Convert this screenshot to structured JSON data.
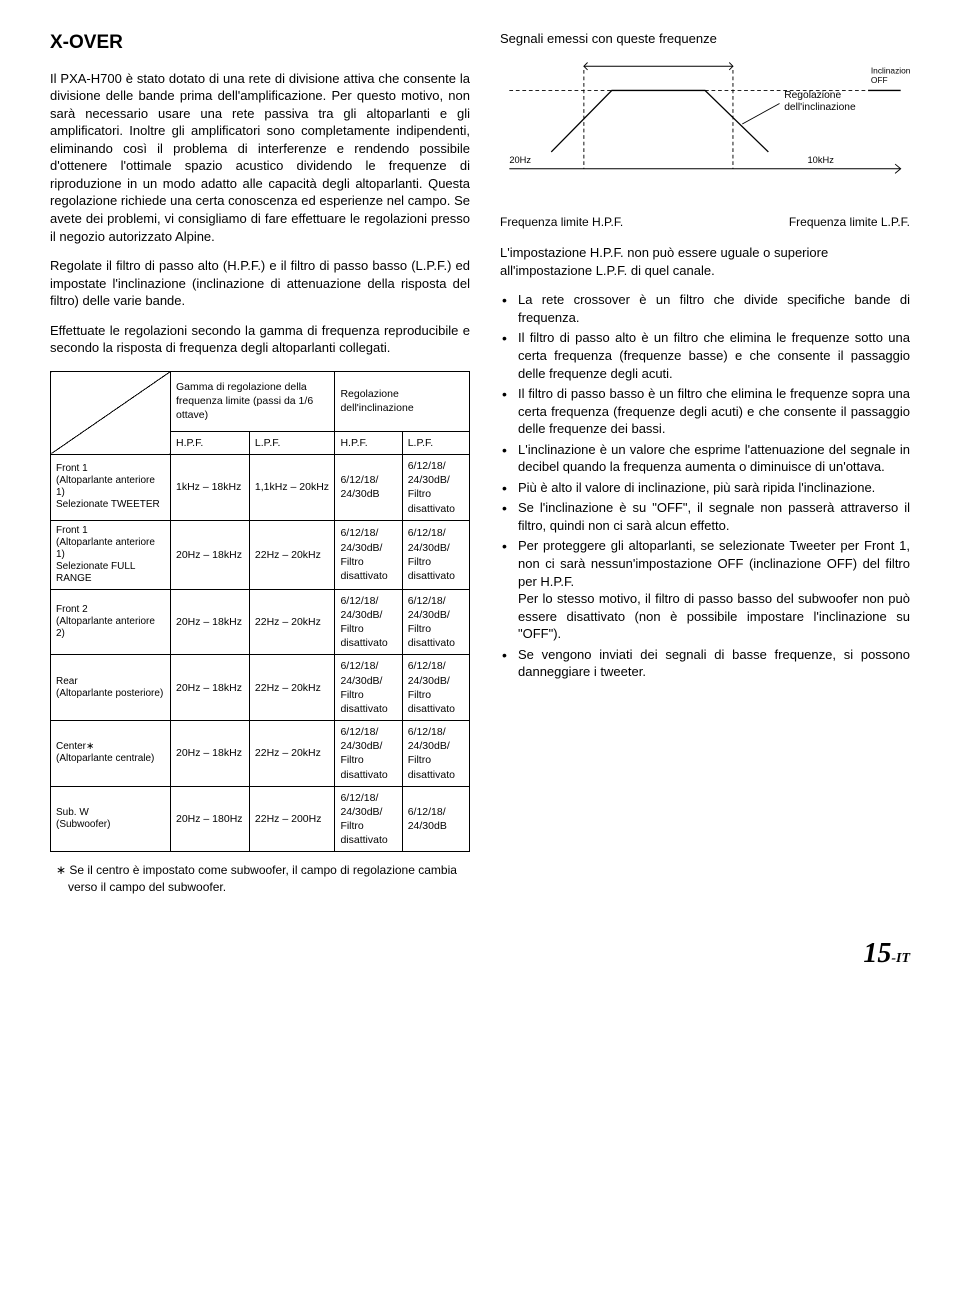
{
  "title": "X-OVER",
  "intro_p1": "Il PXA-H700 è stato dotato di una rete di divisione attiva che consente la divisione delle bande prima dell'amplificazione. Per questo motivo, non sarà necessario usare una rete passiva tra gli altoparlanti e gli amplificatori. Inoltre gli amplificatori sono completamente indipendenti, eliminando così il problema di interferenze e rendendo possibile d'ottenere l'ottimale spazio acustico dividendo le frequenze di riproduzione in un modo adatto alle capacità degli altoparlanti. Questa regolazione richiede una certa conoscenza ed esperienze nel campo. Se avete dei problemi, vi consigliamo di fare effettuare le regolazioni presso il negozio autorizzato Alpine.",
  "intro_p2": "Regolate il filtro di passo alto (H.P.F.) e il filtro di passo basso (L.P.F.) ed impostate l'inclinazione (inclinazione di attenuazione della risposta del filtro) delle varie bande.",
  "intro_p3": "Effettuate le regolazioni secondo la gamma di frequenza reproducibile e secondo la risposta di frequenza degli altoparlanti collegati.",
  "table": {
    "header_group1": "Gamma di regolazione della frequenza limite (passi da 1/6 ottave)",
    "header_group2": "Regolazione dell'inclinazione",
    "sub_hpf": "H.P.F.",
    "sub_lpf": "L.P.F.",
    "rows": [
      {
        "label": "Front 1\n(Altoparlante anteriore 1)\nSelezionate TWEETER",
        "hpf_r": "1kHz – 18kHz",
        "lpf_r": "1,1kHz – 20kHz",
        "hpf_s": "6/12/18/\n24/30dB",
        "lpf_s": "6/12/18/\n24/30dB/\nFiltro disattivato"
      },
      {
        "label": "Front 1\n(Altoparlante anteriore 1)\nSelezionate FULL RANGE",
        "hpf_r": "20Hz – 18kHz",
        "lpf_r": "22Hz – 20kHz",
        "hpf_s": "6/12/18/\n24/30dB/\nFiltro disattivato",
        "lpf_s": "6/12/18/\n24/30dB/\nFiltro disattivato"
      },
      {
        "label": "Front 2\n(Altoparlante anteriore 2)",
        "hpf_r": "20Hz – 18kHz",
        "lpf_r": "22Hz – 20kHz",
        "hpf_s": "6/12/18/\n24/30dB/\nFiltro disattivato",
        "lpf_s": "6/12/18/\n24/30dB/\nFiltro disattivato"
      },
      {
        "label": "Rear\n(Altoparlante posteriore)",
        "hpf_r": "20Hz – 18kHz",
        "lpf_r": "22Hz – 20kHz",
        "hpf_s": "6/12/18/\n24/30dB/\nFiltro disattivato",
        "lpf_s": "6/12/18/\n24/30dB/\nFiltro disattivato"
      },
      {
        "label": "Center∗\n(Altoparlante centrale)",
        "hpf_r": "20Hz – 18kHz",
        "lpf_r": "22Hz – 20kHz",
        "hpf_s": "6/12/18/\n24/30dB/\nFiltro disattivato",
        "lpf_s": "6/12/18/\n24/30dB/\nFiltro disattivato"
      },
      {
        "label": "Sub. W\n(Subwoofer)",
        "hpf_r": "20Hz – 180Hz",
        "lpf_r": "22Hz – 200Hz",
        "hpf_s": "6/12/18/\n24/30dB/\nFiltro disattivato",
        "lpf_s": "6/12/18/\n24/30dB"
      }
    ]
  },
  "footnote": "Se il centro è impostato come subwoofer, il campo di regolazione cambia verso il campo del subwoofer.",
  "sig_title": "Segnali emessi con queste frequenze",
  "diagram": {
    "left_freq": "20Hz",
    "right_freq": "10kHz",
    "reg_label_l1": "Regolazione",
    "reg_label_l2": "dell'inclinazione",
    "incl_off_l1": "Inclinazione",
    "incl_off_l2": "OFF",
    "freq_hpf": "Frequenza limite H.P.F.",
    "freq_lpf": "Frequenza limite L.P.F."
  },
  "note": "L'impostazione H.P.F. non può essere uguale o superiore all'impostazione L.P.F. di quel canale.",
  "bullets": [
    "La rete crossover è un filtro che divide specifiche bande di frequenza.",
    "Il filtro di passo alto è un filtro che elimina le frequenze sotto una certa frequenza (frequenze basse) e che consente il passaggio delle frequenze degli acuti.",
    "Il filtro di passo basso è un filtro che elimina le frequenze sopra una certa frequenza (frequenze degli acuti) e che consente il passaggio delle frequenze dei bassi.",
    "L'inclinazione è un valore che esprime l'attenuazione del segnale in decibel quando la frequenza aumenta o diminuisce di un'ottava.",
    "Più è alto il valore di inclinazione, più sarà ripida l'inclinazione.",
    "Se l'inclinazione è su \"OFF\", il segnale non passerà attraverso il filtro, quindi non ci sarà alcun effetto.",
    "Per proteggere gli altoparlanti, se selezionate Tweeter per Front 1, non ci sarà nessun'impostazione OFF (inclinazione OFF) del filtro per H.P.F.\nPer lo stesso motivo, il filtro di passo basso del subwoofer non può essere disattivato (non è possibile impostare l'inclinazione su \"OFF\").",
    "Se vengono inviati dei segnali di basse frequenze, si possono danneggiare i tweeter."
  ],
  "page_number": "15",
  "page_suffix": "-IT"
}
